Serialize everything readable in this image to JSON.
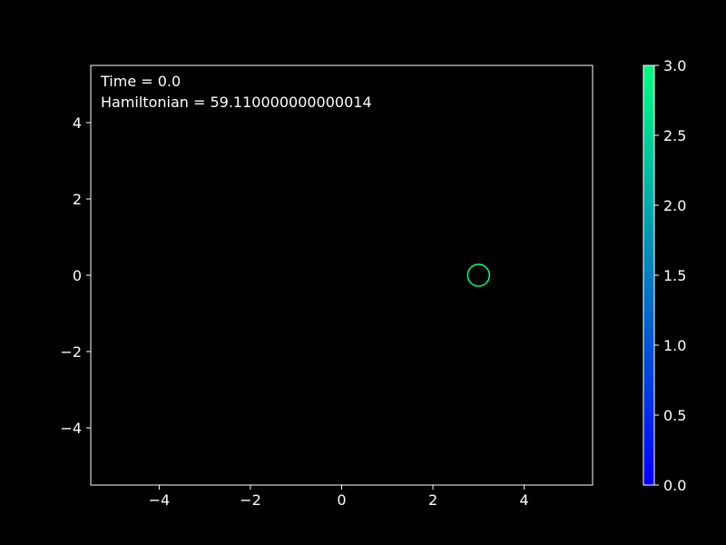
{
  "chart_data": {
    "type": "scatter",
    "annotations": [
      "Time = 0.0",
      "Hamiltonian = 59.110000000000014"
    ],
    "xlim": [
      -5.5,
      5.5
    ],
    "ylim": [
      -5.5,
      5.5
    ],
    "xticks": [
      -4,
      -2,
      0,
      2,
      4
    ],
    "yticks": [
      -4,
      -2,
      0,
      2,
      4
    ],
    "xtick_labels": [
      "−4",
      "−2",
      "0",
      "2",
      "4"
    ],
    "ytick_labels": [
      "−4",
      "−2",
      "0",
      "2",
      "4"
    ],
    "grid": false,
    "points": [
      {
        "x": 3.0,
        "y": 0.0,
        "c": 3.0,
        "marker": "open-circle"
      }
    ],
    "colorbar": {
      "range": [
        0.0,
        3.0
      ],
      "ticks": [
        0.0,
        0.5,
        1.0,
        1.5,
        2.0,
        2.5,
        3.0
      ],
      "tick_labels": [
        "0.0",
        "0.5",
        "1.0",
        "1.5",
        "2.0",
        "2.5",
        "3.0"
      ],
      "colormap": "winter",
      "color_low": "#0000ff",
      "color_high": "#00ff80"
    },
    "background_color": "#000000",
    "foreground_color": "#ffffff"
  }
}
